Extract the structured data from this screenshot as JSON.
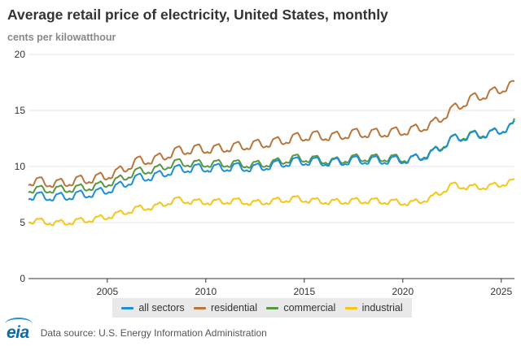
{
  "title": "Average retail price of electricity, United States, monthly",
  "subtitle": "cents per kilowatthour",
  "footer": {
    "logo_text": "eia",
    "source": "Data source: U.S. Energy Information Administration"
  },
  "colors": {
    "all_sectors": "#1a8fd8",
    "residential": "#b8763c",
    "commercial": "#56983f",
    "industrial": "#f5c518"
  },
  "chart_data": {
    "type": "line",
    "title": "Average retail price of electricity, United States, monthly",
    "ylabel": "cents per kilowatthour",
    "xlim": [
      2001.0,
      2025.67
    ],
    "ylim": [
      0,
      20
    ],
    "y_ticks": [
      "0",
      "5",
      "10",
      "15",
      "20"
    ],
    "x_ticks": [
      "2005",
      "2010",
      "2015",
      "2020",
      "2025"
    ],
    "grid": true,
    "legend_position": "bottom",
    "frequency": "monthly",
    "seasonality": "summer peak",
    "series": [
      {
        "name": "all sectors",
        "color": "#1a8fd8",
        "annual_average": [
          [
            2001,
            7.3
          ],
          [
            2002,
            7.2
          ],
          [
            2003,
            7.4
          ],
          [
            2004,
            7.6
          ],
          [
            2005,
            8.1
          ],
          [
            2006,
            8.9
          ],
          [
            2007,
            9.1
          ],
          [
            2008,
            9.7
          ],
          [
            2009,
            9.8
          ],
          [
            2010,
            9.8
          ],
          [
            2011,
            9.9
          ],
          [
            2012,
            9.8
          ],
          [
            2013,
            10.1
          ],
          [
            2014,
            10.4
          ],
          [
            2015,
            10.4
          ],
          [
            2016,
            10.3
          ],
          [
            2017,
            10.5
          ],
          [
            2018,
            10.5
          ],
          [
            2019,
            10.5
          ],
          [
            2020,
            10.6
          ],
          [
            2021,
            11.1
          ],
          [
            2022,
            12.4
          ],
          [
            2023,
            12.7
          ],
          [
            2024,
            12.9
          ],
          [
            2025,
            13.5
          ]
        ],
        "summer_amplitude": 0.45,
        "last_value": 14.1
      },
      {
        "name": "residential",
        "color": "#b8763c",
        "annual_average": [
          [
            2001,
            8.6
          ],
          [
            2002,
            8.4
          ],
          [
            2003,
            8.7
          ],
          [
            2004,
            8.9
          ],
          [
            2005,
            9.4
          ],
          [
            2006,
            10.4
          ],
          [
            2007,
            10.6
          ],
          [
            2008,
            11.3
          ],
          [
            2009,
            11.5
          ],
          [
            2010,
            11.5
          ],
          [
            2011,
            11.7
          ],
          [
            2012,
            11.9
          ],
          [
            2013,
            12.1
          ],
          [
            2014,
            12.5
          ],
          [
            2015,
            12.7
          ],
          [
            2016,
            12.6
          ],
          [
            2017,
            12.9
          ],
          [
            2018,
            12.9
          ],
          [
            2019,
            13.0
          ],
          [
            2020,
            13.2
          ],
          [
            2021,
            13.7
          ],
          [
            2022,
            15.0
          ],
          [
            2023,
            16.0
          ],
          [
            2024,
            16.5
          ],
          [
            2025,
            17.2
          ]
        ],
        "summer_amplitude": 0.5,
        "last_value": 17.6
      },
      {
        "name": "commercial",
        "color": "#56983f",
        "annual_average": [
          [
            2001,
            7.9
          ],
          [
            2002,
            7.9
          ],
          [
            2003,
            8.0
          ],
          [
            2004,
            8.2
          ],
          [
            2005,
            8.7
          ],
          [
            2006,
            9.5
          ],
          [
            2007,
            9.7
          ],
          [
            2008,
            10.3
          ],
          [
            2009,
            10.2
          ],
          [
            2010,
            10.2
          ],
          [
            2011,
            10.2
          ],
          [
            2012,
            10.1
          ],
          [
            2013,
            10.3
          ],
          [
            2014,
            10.7
          ],
          [
            2015,
            10.6
          ],
          [
            2016,
            10.4
          ],
          [
            2017,
            10.7
          ],
          [
            2018,
            10.7
          ],
          [
            2019,
            10.7
          ],
          [
            2020,
            10.6
          ],
          [
            2021,
            11.2
          ],
          [
            2022,
            12.4
          ],
          [
            2023,
            12.8
          ],
          [
            2024,
            12.9
          ],
          [
            2025,
            13.5
          ]
        ],
        "summer_amplitude": 0.4,
        "last_value": 14.3
      },
      {
        "name": "industrial",
        "color": "#f5c518",
        "annual_average": [
          [
            2001,
            5.1
          ],
          [
            2002,
            4.9
          ],
          [
            2003,
            5.1
          ],
          [
            2004,
            5.3
          ],
          [
            2005,
            5.7
          ],
          [
            2006,
            6.2
          ],
          [
            2007,
            6.4
          ],
          [
            2008,
            7.0
          ],
          [
            2009,
            6.8
          ],
          [
            2010,
            6.8
          ],
          [
            2011,
            6.9
          ],
          [
            2012,
            6.7
          ],
          [
            2013,
            6.9
          ],
          [
            2014,
            7.1
          ],
          [
            2015,
            6.9
          ],
          [
            2016,
            6.8
          ],
          [
            2017,
            6.9
          ],
          [
            2018,
            6.9
          ],
          [
            2019,
            6.8
          ],
          [
            2020,
            6.7
          ],
          [
            2021,
            7.2
          ],
          [
            2022,
            8.3
          ],
          [
            2023,
            8.1
          ],
          [
            2024,
            8.2
          ],
          [
            2025,
            8.6
          ]
        ],
        "summer_amplitude": 0.3,
        "last_value": 8.9
      }
    ]
  }
}
